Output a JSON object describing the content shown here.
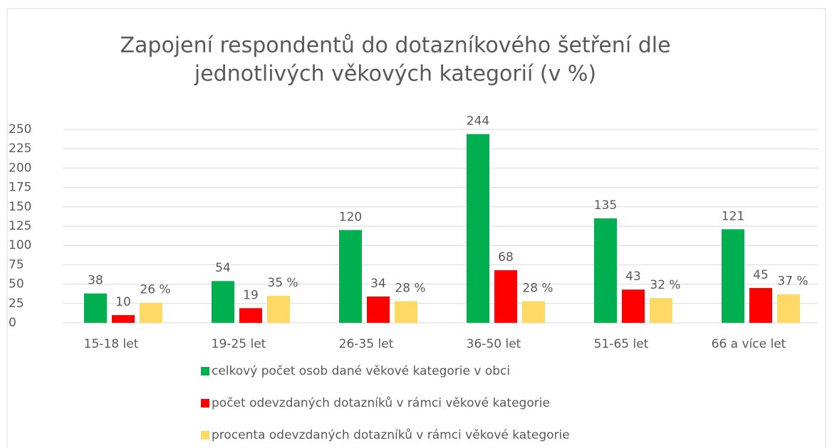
{
  "chart_data": {
    "type": "bar",
    "title": [
      "Zapojení respondentů do dotazníkového šetření dle",
      "jednotlivých věkových kategorií (v %)"
    ],
    "categories": [
      "15-18 let",
      "19-25 let",
      "26-35 let",
      "36-50 let",
      "51-65 let",
      "66 a více let"
    ],
    "series": [
      {
        "name": "celkový počet osob dané věkové kategorie v obci",
        "color": "#00b050",
        "values": [
          38,
          54,
          120,
          244,
          135,
          121
        ]
      },
      {
        "name": "počet odevzdaných dotazníků v rámci věkové kategorie",
        "color": "#ff0000",
        "values": [
          10,
          19,
          34,
          68,
          43,
          45
        ]
      },
      {
        "name": "procenta odevzdaných dotazníků v rámci věkové kategorie",
        "color": "#ffd966",
        "values": [
          26,
          35,
          28,
          28,
          32,
          37
        ],
        "value_labels": [
          "26 %",
          "35 %",
          "28 %",
          "28 %",
          "32 %",
          "37 %"
        ]
      }
    ],
    "ylim": [
      0,
      250
    ],
    "yticks": [
      0,
      25,
      50,
      75,
      100,
      125,
      150,
      175,
      200,
      225,
      250
    ],
    "grid": true,
    "legend": "bottom"
  }
}
